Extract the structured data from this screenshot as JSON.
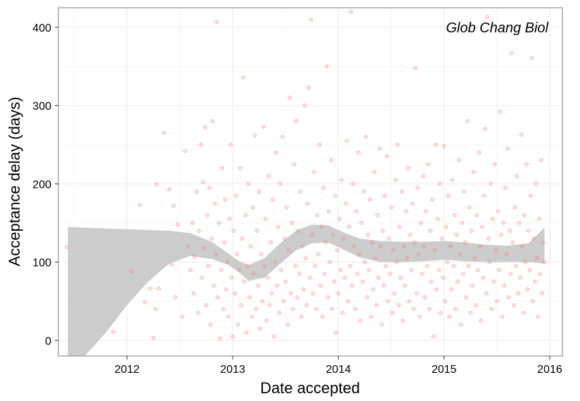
{
  "chart_data": {
    "type": "scatter",
    "annotation": "Glob Chang Biol",
    "xlabel": "Date accepted",
    "ylabel": "Acceptance delay (days)",
    "xlim": [
      2011.35,
      2016.12
    ],
    "ylim": [
      -20,
      425
    ],
    "x_ticks": [
      2012,
      2013,
      2014,
      2015,
      2016
    ],
    "y_ticks": [
      0,
      100,
      200,
      300,
      400
    ],
    "grid": true,
    "colors": {
      "points": "#f8766d",
      "band": "#cccccc",
      "grid_major": "#ebebeb",
      "grid_minor": "#f5f5f5",
      "frame": "#999999"
    },
    "smooth_band": {
      "x": [
        2011.44,
        2011.6,
        2011.8,
        2012.0,
        2012.2,
        2012.4,
        2012.6,
        2012.8,
        2012.95,
        2013.05,
        2013.15,
        2013.3,
        2013.45,
        2013.6,
        2013.75,
        2013.9,
        2014.05,
        2014.2,
        2014.4,
        2014.6,
        2014.8,
        2015.0,
        2015.2,
        2015.4,
        2015.6,
        2015.8,
        2015.95
      ],
      "upper": [
        145,
        144,
        143,
        142,
        141,
        140,
        137,
        126,
        112,
        102,
        96,
        105,
        124,
        140,
        148,
        147,
        138,
        130,
        127,
        126,
        126,
        127,
        125,
        122,
        121,
        124,
        144
      ],
      "lower": [
        -20,
        -20,
        10,
        45,
        75,
        98,
        108,
        104,
        97,
        88,
        76,
        80,
        98,
        115,
        124,
        125,
        116,
        106,
        100,
        100,
        101,
        103,
        101,
        100,
        100,
        100,
        98
      ]
    },
    "points": [
      [
        2011.43,
        119
      ],
      [
        2011.87,
        11
      ],
      [
        2012.04,
        88
      ],
      [
        2012.12,
        173
      ],
      [
        2012.17,
        49
      ],
      [
        2012.22,
        66
      ],
      [
        2012.25,
        3
      ],
      [
        2012.27,
        40
      ],
      [
        2012.28,
        199
      ],
      [
        2012.3,
        66
      ],
      [
        2012.35,
        265
      ],
      [
        2012.4,
        193
      ],
      [
        2012.42,
        97
      ],
      [
        2012.44,
        172
      ],
      [
        2012.46,
        55
      ],
      [
        2012.48,
        148
      ],
      [
        2012.52,
        30
      ],
      [
        2012.55,
        242
      ],
      [
        2012.58,
        120
      ],
      [
        2012.6,
        90
      ],
      [
        2012.62,
        150
      ],
      [
        2012.63,
        60
      ],
      [
        2012.64,
        107
      ],
      [
        2012.66,
        190
      ],
      [
        2012.67,
        35
      ],
      [
        2012.68,
        140
      ],
      [
        2012.7,
        250
      ],
      [
        2012.71,
        80
      ],
      [
        2012.72,
        202
      ],
      [
        2012.73,
        118
      ],
      [
        2012.74,
        272
      ],
      [
        2012.75,
        45
      ],
      [
        2012.76,
        160
      ],
      [
        2012.77,
        95
      ],
      [
        2012.78,
        195
      ],
      [
        2012.79,
        20
      ],
      [
        2012.8,
        130
      ],
      [
        2012.81,
        280
      ],
      [
        2012.82,
        70
      ],
      [
        2012.83,
        175
      ],
      [
        2012.84,
        110
      ],
      [
        2012.85,
        407
      ],
      [
        2012.86,
        55
      ],
      [
        2012.87,
        150
      ],
      [
        2012.88,
        2
      ],
      [
        2012.89,
        90
      ],
      [
        2012.9,
        220
      ],
      [
        2012.91,
        40
      ],
      [
        2012.92,
        125
      ],
      [
        2012.93,
        180
      ],
      [
        2012.94,
        65
      ],
      [
        2012.95,
        100
      ],
      [
        2012.96,
        30
      ],
      [
        2012.97,
        155
      ],
      [
        2012.98,
        250
      ],
      [
        2012.99,
        80
      ],
      [
        2013.0,
        5
      ],
      [
        2013.01,
        140
      ],
      [
        2013.02,
        60
      ],
      [
        2013.03,
        185
      ],
      [
        2013.04,
        110
      ],
      [
        2013.05,
        20
      ],
      [
        2013.06,
        90
      ],
      [
        2013.07,
        220
      ],
      [
        2013.08,
        45
      ],
      [
        2013.09,
        130
      ],
      [
        2013.1,
        336
      ],
      [
        2013.11,
        75
      ],
      [
        2013.12,
        160
      ],
      [
        2013.13,
        10
      ],
      [
        2013.14,
        95
      ],
      [
        2013.15,
        200
      ],
      [
        2013.16,
        55
      ],
      [
        2013.17,
        120
      ],
      [
        2013.18,
        30
      ],
      [
        2013.19,
        170
      ],
      [
        2013.2,
        85
      ],
      [
        2013.21,
        262
      ],
      [
        2013.22,
        40
      ],
      [
        2013.23,
        140
      ],
      [
        2013.24,
        70
      ],
      [
        2013.25,
        190
      ],
      [
        2013.26,
        15
      ],
      [
        2013.27,
        110
      ],
      [
        2013.28,
        50
      ],
      [
        2013.29,
        273
      ],
      [
        2013.3,
        95
      ],
      [
        2013.31,
        155
      ],
      [
        2013.32,
        25
      ],
      [
        2013.33,
        80
      ],
      [
        2013.34,
        210
      ],
      [
        2013.35,
        45
      ],
      [
        2013.36,
        125
      ],
      [
        2013.37,
        60
      ],
      [
        2013.38,
        180
      ],
      [
        2013.39,
        5
      ],
      [
        2013.4,
        100
      ],
      [
        2013.41,
        240
      ],
      [
        2013.42,
        70
      ],
      [
        2013.43,
        145
      ],
      [
        2013.44,
        35
      ],
      [
        2013.45,
        200
      ],
      [
        2013.46,
        90
      ],
      [
        2013.47,
        260
      ],
      [
        2013.48,
        50
      ],
      [
        2013.49,
        130
      ],
      [
        2013.5,
        75
      ],
      [
        2013.51,
        170
      ],
      [
        2013.52,
        20
      ],
      [
        2013.53,
        115
      ],
      [
        2013.54,
        310
      ],
      [
        2013.55,
        60
      ],
      [
        2013.56,
        150
      ],
      [
        2013.57,
        40
      ],
      [
        2013.58,
        225
      ],
      [
        2013.59,
        95
      ],
      [
        2013.6,
        280
      ],
      [
        2013.61,
        55
      ],
      [
        2013.62,
        140
      ],
      [
        2013.63,
        85
      ],
      [
        2013.64,
        190
      ],
      [
        2013.65,
        30
      ],
      [
        2013.66,
        120
      ],
      [
        2013.67,
        65
      ],
      [
        2013.68,
        300
      ],
      [
        2013.69,
        105
      ],
      [
        2013.7,
        45
      ],
      [
        2013.71,
        175
      ],
      [
        2013.72,
        323
      ],
      [
        2013.73,
        80
      ],
      [
        2013.74,
        410
      ],
      [
        2013.75,
        135
      ],
      [
        2013.76,
        60
      ],
      [
        2013.77,
        215
      ],
      [
        2013.78,
        95
      ],
      [
        2013.79,
        40
      ],
      [
        2013.8,
        160
      ],
      [
        2013.81,
        110
      ],
      [
        2013.82,
        250
      ],
      [
        2013.83,
        70
      ],
      [
        2013.84,
        145
      ],
      [
        2013.85,
        30
      ],
      [
        2013.86,
        195
      ],
      [
        2013.87,
        85
      ],
      [
        2013.88,
        125
      ],
      [
        2013.89,
        350
      ],
      [
        2013.9,
        55
      ],
      [
        2013.91,
        165
      ],
      [
        2013.92,
        100
      ],
      [
        2013.93,
        230
      ],
      [
        2013.94,
        40
      ],
      [
        2013.95,
        135
      ],
      [
        2013.96,
        75
      ],
      [
        2013.97,
        185
      ],
      [
        2013.98,
        10
      ],
      [
        2013.99,
        115
      ],
      [
        2014.0,
        60
      ],
      [
        2014.01,
        155
      ],
      [
        2014.02,
        90
      ],
      [
        2014.03,
        205
      ],
      [
        2014.04,
        35
      ],
      [
        2014.05,
        130
      ],
      [
        2014.06,
        80
      ],
      [
        2014.07,
        175
      ],
      [
        2014.08,
        255
      ],
      [
        2014.09,
        50
      ],
      [
        2014.1,
        145
      ],
      [
        2014.11,
        95
      ],
      [
        2014.12,
        420
      ],
      [
        2014.13,
        70
      ],
      [
        2014.14,
        200
      ],
      [
        2014.15,
        120
      ],
      [
        2014.16,
        40
      ],
      [
        2014.17,
        165
      ],
      [
        2014.18,
        85
      ],
      [
        2014.19,
        240
      ],
      [
        2014.2,
        110
      ],
      [
        2014.21,
        25
      ],
      [
        2014.22,
        150
      ],
      [
        2014.23,
        75
      ],
      [
        2014.24,
        190
      ],
      [
        2014.25,
        100
      ],
      [
        2014.26,
        260
      ],
      [
        2014.27,
        55
      ],
      [
        2014.28,
        135
      ],
      [
        2014.29,
        90
      ],
      [
        2014.3,
        180
      ],
      [
        2014.31,
        30
      ],
      [
        2014.32,
        125
      ],
      [
        2014.33,
        65
      ],
      [
        2014.34,
        215
      ],
      [
        2014.35,
        105
      ],
      [
        2014.36,
        45
      ],
      [
        2014.37,
        160
      ],
      [
        2014.38,
        80
      ],
      [
        2014.39,
        245
      ],
      [
        2014.4,
        120
      ],
      [
        2014.41,
        20
      ],
      [
        2014.42,
        140
      ],
      [
        2014.43,
        70
      ],
      [
        2014.44,
        185
      ],
      [
        2014.45,
        95
      ],
      [
        2014.46,
        235
      ],
      [
        2014.47,
        50
      ],
      [
        2014.48,
        130
      ],
      [
        2014.49,
        85
      ],
      [
        2014.5,
        170
      ],
      [
        2014.51,
        35
      ],
      [
        2014.52,
        115
      ],
      [
        2014.53,
        60
      ],
      [
        2014.54,
        205
      ],
      [
        2014.55,
        100
      ],
      [
        2014.56,
        250
      ],
      [
        2014.57,
        45
      ],
      [
        2014.58,
        145
      ],
      [
        2014.59,
        80
      ],
      [
        2014.6,
        190
      ],
      [
        2014.61,
        25
      ],
      [
        2014.62,
        120
      ],
      [
        2014.63,
        70
      ],
      [
        2014.64,
        165
      ],
      [
        2014.65,
        105
      ],
      [
        2014.66,
        220
      ],
      [
        2014.67,
        50
      ],
      [
        2014.68,
        135
      ],
      [
        2014.69,
        90
      ],
      [
        2014.7,
        175
      ],
      [
        2014.71,
        40
      ],
      [
        2014.72,
        125
      ],
      [
        2014.73,
        348
      ],
      [
        2014.74,
        60
      ],
      [
        2014.75,
        195
      ],
      [
        2014.76,
        110
      ],
      [
        2014.77,
        30
      ],
      [
        2014.78,
        150
      ],
      [
        2014.79,
        85
      ],
      [
        2014.8,
        210
      ],
      [
        2014.81,
        120
      ],
      [
        2014.82,
        55
      ],
      [
        2014.83,
        165
      ],
      [
        2014.84,
        95
      ],
      [
        2014.85,
        225
      ],
      [
        2014.86,
        40
      ],
      [
        2014.87,
        140
      ],
      [
        2014.88,
        75
      ],
      [
        2014.89,
        180
      ],
      [
        2014.9,
        5
      ],
      [
        2014.91,
        115
      ],
      [
        2014.92,
        250
      ],
      [
        2014.93,
        65
      ],
      [
        2014.94,
        155
      ],
      [
        2014.95,
        90
      ],
      [
        2014.96,
        200
      ],
      [
        2014.97,
        35
      ],
      [
        2014.98,
        130
      ],
      [
        2014.99,
        80
      ],
      [
        2015.0,
        248
      ],
      [
        2015.01,
        50
      ],
      [
        2015.02,
        145
      ],
      [
        2015.03,
        100
      ],
      [
        2015.04,
        185
      ],
      [
        2015.05,
        30
      ],
      [
        2015.06,
        120
      ],
      [
        2015.07,
        65
      ],
      [
        2015.08,
        205
      ],
      [
        2015.09,
        95
      ],
      [
        2015.1,
        160
      ],
      [
        2015.11,
        40
      ],
      [
        2015.12,
        135
      ],
      [
        2015.13,
        75
      ],
      [
        2015.14,
        230
      ],
      [
        2015.15,
        110
      ],
      [
        2015.16,
        20
      ],
      [
        2015.17,
        150
      ],
      [
        2015.18,
        85
      ],
      [
        2015.19,
        190
      ],
      [
        2015.2,
        125
      ],
      [
        2015.21,
        55
      ],
      [
        2015.22,
        280
      ],
      [
        2015.23,
        95
      ],
      [
        2015.24,
        170
      ],
      [
        2015.25,
        35
      ],
      [
        2015.26,
        140
      ],
      [
        2015.27,
        70
      ],
      [
        2015.28,
        215
      ],
      [
        2015.29,
        105
      ],
      [
        2015.3,
        45
      ],
      [
        2015.31,
        160
      ],
      [
        2015.32,
        90
      ],
      [
        2015.33,
        240
      ],
      [
        2015.34,
        120
      ],
      [
        2015.35,
        25
      ],
      [
        2015.36,
        145
      ],
      [
        2015.37,
        80
      ],
      [
        2015.38,
        185
      ],
      [
        2015.39,
        270
      ],
      [
        2015.4,
        60
      ],
      [
        2015.41,
        413
      ],
      [
        2015.42,
        130
      ],
      [
        2015.43,
        100
      ],
      [
        2015.44,
        200
      ],
      [
        2015.45,
        40
      ],
      [
        2015.46,
        155
      ],
      [
        2015.47,
        75
      ],
      [
        2015.48,
        225
      ],
      [
        2015.49,
        115
      ],
      [
        2015.5,
        50
      ],
      [
        2015.51,
        165
      ],
      [
        2015.52,
        90
      ],
      [
        2015.53,
        292
      ],
      [
        2015.54,
        135
      ],
      [
        2015.55,
        30
      ],
      [
        2015.56,
        150
      ],
      [
        2015.57,
        70
      ],
      [
        2015.58,
        195
      ],
      [
        2015.59,
        110
      ],
      [
        2015.6,
        245
      ],
      [
        2015.61,
        55
      ],
      [
        2015.62,
        140
      ],
      [
        2015.63,
        85
      ],
      [
        2015.64,
        367
      ],
      [
        2015.65,
        125
      ],
      [
        2015.66,
        45
      ],
      [
        2015.67,
        170
      ],
      [
        2015.68,
        95
      ],
      [
        2015.69,
        210
      ],
      [
        2015.7,
        60
      ],
      [
        2015.71,
        150
      ],
      [
        2015.72,
        80
      ],
      [
        2015.73,
        263
      ],
      [
        2015.74,
        120
      ],
      [
        2015.75,
        35
      ],
      [
        2015.76,
        160
      ],
      [
        2015.77,
        100
      ],
      [
        2015.78,
        225
      ],
      [
        2015.79,
        65
      ],
      [
        2015.8,
        140
      ],
      [
        2015.81,
        90
      ],
      [
        2015.82,
        185
      ],
      [
        2015.83,
        361
      ],
      [
        2015.84,
        50
      ],
      [
        2015.85,
        130
      ],
      [
        2015.86,
        75
      ],
      [
        2015.87,
        200
      ],
      [
        2015.88,
        105
      ],
      [
        2015.89,
        30
      ],
      [
        2015.9,
        155
      ],
      [
        2015.91,
        85
      ],
      [
        2015.92,
        230
      ],
      [
        2015.93,
        60
      ],
      [
        2015.94,
        125
      ],
      [
        2015.95,
        100
      ]
    ]
  }
}
